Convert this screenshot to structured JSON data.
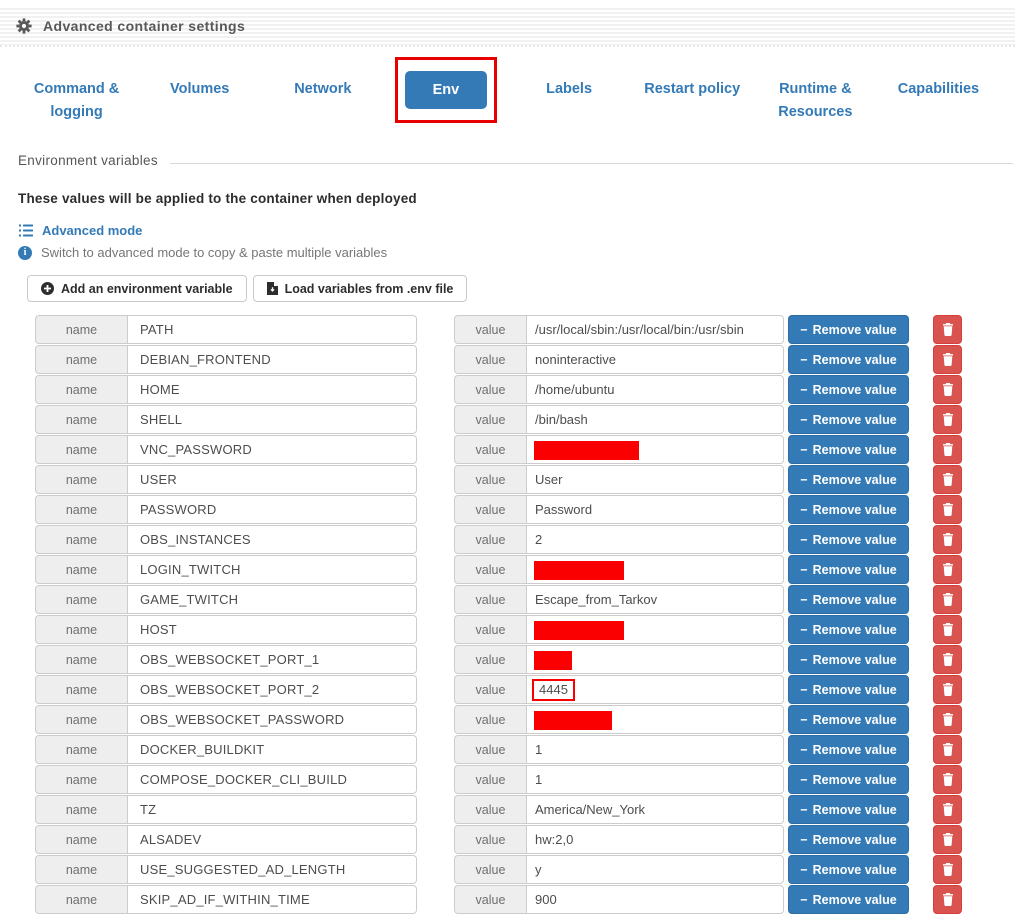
{
  "header": {
    "title": "Advanced container settings"
  },
  "tabs": [
    {
      "label": "Command & logging",
      "active": false
    },
    {
      "label": "Volumes",
      "active": false
    },
    {
      "label": "Network",
      "active": false
    },
    {
      "label": "Env",
      "active": true,
      "annotated": true
    },
    {
      "label": "Labels",
      "active": false
    },
    {
      "label": "Restart policy",
      "active": false
    },
    {
      "label": "Runtime & Resources",
      "active": false
    },
    {
      "label": "Capabilities",
      "active": false
    }
  ],
  "section": {
    "title": "Environment variables",
    "subtitle": "These values will be applied to the container when deployed",
    "advanced_mode_label": "Advanced mode",
    "advanced_mode_hint": "Switch to advanced mode to copy & paste multiple variables",
    "add_button_label": "Add an environment variable",
    "load_button_label": "Load variables from .env file"
  },
  "table": {
    "name_addon": "name",
    "value_addon": "value",
    "remove_button_label": "Remove value",
    "rows": [
      {
        "name": "PATH",
        "value": "/usr/local/sbin:/usr/local/bin:/usr/sbin",
        "redacted": false
      },
      {
        "name": "DEBIAN_FRONTEND",
        "value": "noninteractive",
        "redacted": false
      },
      {
        "name": "HOME",
        "value": "/home/ubuntu",
        "redacted": false
      },
      {
        "name": "SHELL",
        "value": "/bin/bash",
        "redacted": false
      },
      {
        "name": "VNC_PASSWORD",
        "value": "",
        "redacted": true,
        "redaction_width": 105
      },
      {
        "name": "USER",
        "value": "User",
        "redacted": false
      },
      {
        "name": "PASSWORD",
        "value": "Password",
        "redacted": false
      },
      {
        "name": "OBS_INSTANCES",
        "value": "2",
        "redacted": false
      },
      {
        "name": "LOGIN_TWITCH",
        "value": "",
        "redacted": true,
        "redaction_width": 90
      },
      {
        "name": "GAME_TWITCH",
        "value": "Escape_from_Tarkov",
        "redacted": false
      },
      {
        "name": "HOST",
        "value": "",
        "redacted": true,
        "redaction_width": 90
      },
      {
        "name": "OBS_WEBSOCKET_PORT_1",
        "value": "",
        "redacted": true,
        "redaction_width": 38
      },
      {
        "name": "OBS_WEBSOCKET_PORT_2",
        "value": "4445",
        "redacted": false,
        "outlined": true
      },
      {
        "name": "OBS_WEBSOCKET_PASSWORD",
        "value": "",
        "redacted": true,
        "redaction_width": 78
      },
      {
        "name": "DOCKER_BUILDKIT",
        "value": "1",
        "redacted": false
      },
      {
        "name": "COMPOSE_DOCKER_CLI_BUILD",
        "value": "1",
        "redacted": false
      },
      {
        "name": "TZ",
        "value": "America/New_York",
        "redacted": false
      },
      {
        "name": "ALSADEV",
        "value": "hw:2,0",
        "redacted": false
      },
      {
        "name": "USE_SUGGESTED_AD_LENGTH",
        "value": "y",
        "redacted": false
      },
      {
        "name": "SKIP_AD_IF_WITHIN_TIME",
        "value": "900",
        "redacted": false
      }
    ]
  },
  "colors": {
    "primary": "#337ab7",
    "danger": "#d9534f",
    "redaction": "#fb0000",
    "annotation": "#e80000"
  }
}
